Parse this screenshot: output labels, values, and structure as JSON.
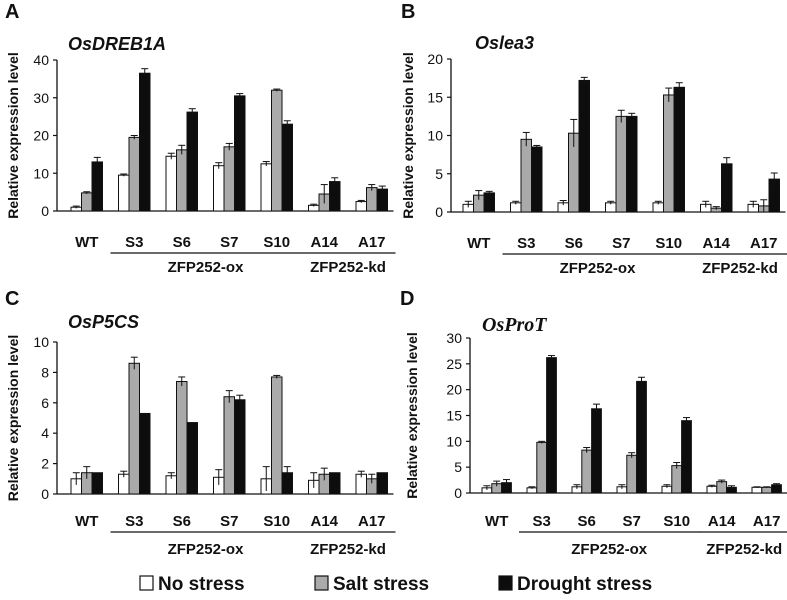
{
  "colors": {
    "no_stress": "#ffffff",
    "salt_stress": "#aaaaaa",
    "drought_stress": "#0d0d0d",
    "outline": "#111111"
  },
  "legend": [
    {
      "label": "No stress",
      "color": "#ffffff"
    },
    {
      "label": "Salt stress",
      "color": "#aaaaaa"
    },
    {
      "label": "Drought stress",
      "color": "#0d0d0d"
    }
  ],
  "chart_data": [
    {
      "panel": "A",
      "type": "bar",
      "title": "OsDREB1A",
      "ylabel": "Relative expression level",
      "ylim": [
        0,
        40
      ],
      "yticks": [
        0,
        10,
        20,
        30,
        40
      ],
      "categories": [
        "WT",
        "S3",
        "S6",
        "S7",
        "S10",
        "A14",
        "A17"
      ],
      "groups": [
        {
          "label": "ZFP252-ox",
          "from": 1,
          "to": 4
        },
        {
          "label": "ZFP252-kd",
          "from": 5,
          "to": 6
        }
      ],
      "series": [
        {
          "name": "No stress",
          "values": [
            1,
            9.5,
            14.5,
            12,
            12.5,
            1.5,
            2.5
          ],
          "errors": [
            0.3,
            0.3,
            0.8,
            0.8,
            0.6,
            0.3,
            0.3
          ]
        },
        {
          "name": "Salt stress",
          "values": [
            4.8,
            19.5,
            16.2,
            17,
            32,
            4.5,
            6.2
          ],
          "errors": [
            0.3,
            0.5,
            1.2,
            0.9,
            0.3,
            2.5,
            0.8
          ]
        },
        {
          "name": "Drought stress",
          "values": [
            13,
            36.5,
            26.2,
            30.5,
            23,
            7.8,
            5.8
          ],
          "errors": [
            1.2,
            1.2,
            0.9,
            0.6,
            0.9,
            1.0,
            0.8
          ]
        }
      ]
    },
    {
      "panel": "B",
      "type": "bar",
      "title": "Oslea3",
      "ylabel": "Relative expression level",
      "ylim": [
        0,
        20
      ],
      "yticks": [
        0,
        5,
        10,
        15,
        20
      ],
      "categories": [
        "WT",
        "S3",
        "S6",
        "S7",
        "S10",
        "A14",
        "A17"
      ],
      "groups": [
        {
          "label": "ZFP252-ox",
          "from": 1,
          "to": 4
        },
        {
          "label": "ZFP252-kd",
          "from": 5,
          "to": 6
        }
      ],
      "series": [
        {
          "name": "No stress",
          "values": [
            1,
            1.2,
            1.2,
            1.2,
            1.2,
            1.0,
            1.0
          ],
          "errors": [
            0.4,
            0.2,
            0.3,
            0.2,
            0.2,
            0.4,
            0.4
          ]
        },
        {
          "name": "Salt stress",
          "values": [
            2.2,
            9.5,
            10.3,
            12.5,
            15.3,
            0.5,
            0.8
          ],
          "errors": [
            0.6,
            0.9,
            1.8,
            0.8,
            0.9,
            0.2,
            0.8
          ]
        },
        {
          "name": "Drought stress",
          "values": [
            2.5,
            8.5,
            17.2,
            12.5,
            16.3,
            6.3,
            4.3
          ],
          "errors": [
            0.2,
            0.2,
            0.4,
            0.4,
            0.6,
            0.8,
            0.8
          ]
        }
      ]
    },
    {
      "panel": "C",
      "type": "bar",
      "title": "OsP5CS",
      "ylabel": "Relative expression level",
      "ylim": [
        0,
        10
      ],
      "yticks": [
        0,
        2,
        4,
        6,
        8,
        10
      ],
      "categories": [
        "WT",
        "S3",
        "S6",
        "S7",
        "S10",
        "A14",
        "A17"
      ],
      "groups": [
        {
          "label": "ZFP252-ox",
          "from": 1,
          "to": 4
        },
        {
          "label": "ZFP252-kd",
          "from": 5,
          "to": 6
        }
      ],
      "series": [
        {
          "name": "No stress",
          "values": [
            1,
            1.3,
            1.2,
            1.1,
            1.0,
            0.9,
            1.3
          ],
          "errors": [
            0.4,
            0.2,
            0.2,
            0.5,
            0.8,
            0.5,
            0.2
          ]
        },
        {
          "name": "Salt stress",
          "values": [
            1.4,
            8.6,
            7.4,
            6.4,
            7.7,
            1.3,
            1.0
          ],
          "errors": [
            0.4,
            0.4,
            0.3,
            0.4,
            0.1,
            0.4,
            0.3
          ]
        },
        {
          "name": "Drought stress",
          "values": [
            1.4,
            5.3,
            4.7,
            6.2,
            1.4,
            1.4,
            1.4
          ],
          "errors": [
            0,
            0,
            0,
            0.3,
            0.4,
            0,
            0
          ]
        }
      ]
    },
    {
      "panel": "D",
      "type": "bar",
      "title": "OsProT",
      "ylabel": "Relative expression level",
      "ylim": [
        0,
        30
      ],
      "yticks": [
        0,
        5,
        10,
        15,
        20,
        25,
        30
      ],
      "categories": [
        "WT",
        "S3",
        "S6",
        "S7",
        "S10",
        "A14",
        "A17"
      ],
      "groups": [
        {
          "label": "ZFP252-ox",
          "from": 1,
          "to": 4
        },
        {
          "label": "ZFP252-kd",
          "from": 5,
          "to": 6
        }
      ],
      "series": [
        {
          "name": "No stress",
          "values": [
            1,
            1,
            1.2,
            1.2,
            1.3,
            1.3,
            1.1
          ],
          "errors": [
            0.4,
            0.2,
            0.4,
            0.4,
            0.3,
            0.2,
            0.1
          ]
        },
        {
          "name": "Salt stress",
          "values": [
            1.8,
            9.8,
            8.3,
            7.3,
            5.3,
            2.2,
            1.1
          ],
          "errors": [
            0.5,
            0.2,
            0.5,
            0.5,
            0.6,
            0.3,
            0.1
          ]
        },
        {
          "name": "Drought stress",
          "values": [
            2,
            26.2,
            16.3,
            21.6,
            14,
            1.1,
            1.6
          ],
          "errors": [
            0.6,
            0.4,
            0.9,
            0.8,
            0.6,
            0.3,
            0.2
          ]
        }
      ]
    }
  ]
}
